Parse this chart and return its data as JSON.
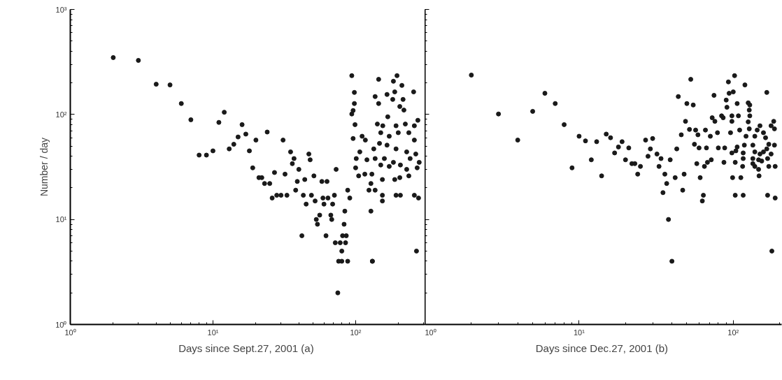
{
  "chart_data": [
    {
      "type": "scatter",
      "xlabel": "Days since Sept.27, 2001  (a)",
      "ylabel": "Number / day",
      "log": "xy",
      "grid": false,
      "marker": "circle",
      "xlim": [
        1,
        306
      ],
      "ylim": [
        1,
        1000
      ],
      "xticks": [
        {
          "value": 1,
          "label": "10⁰"
        },
        {
          "value": 10,
          "label": "10¹"
        },
        {
          "value": 100,
          "label": "10²"
        }
      ],
      "yticks": [
        {
          "value": 1,
          "label": "10⁰"
        },
        {
          "value": 10,
          "label": "10¹"
        },
        {
          "value": 100,
          "label": "10²"
        },
        {
          "value": 1000,
          "label": "10³"
        }
      ],
      "series": [
        {
          "color": "#1a1a1a",
          "x": [
            2,
            3,
            4,
            5,
            6,
            7,
            8,
            9,
            10,
            11,
            12,
            13,
            14,
            15,
            16,
            17,
            18,
            19,
            20,
            21,
            22,
            23,
            24,
            25,
            26,
            27,
            28,
            31,
            35,
            37,
            36,
            32,
            40,
            47,
            48,
            39,
            44,
            51,
            30,
            33,
            38,
            43,
            45,
            49,
            52,
            58,
            63,
            59,
            60,
            64,
            69,
            71,
            73,
            56,
            53,
            54,
            67,
            68,
            42,
            62,
            72,
            78,
            85,
            80,
            81,
            86,
            84,
            83,
            88,
            91,
            75,
            76,
            80,
            88,
            131,
            128,
            94,
            98,
            98,
            96,
            94,
            99,
            96,
            101,
            100,
            105,
            111,
            117,
            107,
            120,
            116,
            130,
            128,
            124,
            137,
            154,
            154,
            134,
            145,
            137,
            145,
            166,
            184,
            195,
            211,
            188,
            182,
            215,
            204,
            218,
            255,
            168,
            155,
            142,
            192,
            223,
            258,
            273,
            150,
            172,
            199,
            236,
            258,
            147,
            166,
            192,
            228,
            264,
            137,
            159,
            184,
            206,
            241,
            279,
            150,
            172,
            228,
            154,
            188,
            204,
            236,
            270,
            192,
            206,
            258,
            276,
            267,
            131
          ],
          "values": [
            348,
            327,
            194,
            191,
            127,
            89,
            41,
            41,
            45,
            84,
            105,
            47,
            52,
            61,
            80,
            65,
            45,
            31,
            57,
            25,
            25,
            22,
            68,
            22,
            16,
            28,
            17,
            57,
            44,
            38,
            34,
            27,
            30,
            42,
            37,
            23,
            24,
            26,
            17,
            17,
            19,
            17,
            14,
            17,
            15,
            23,
            23,
            16,
            14,
            16,
            14,
            17,
            30,
            11,
            10,
            9,
            11,
            10,
            7,
            7,
            6,
            6,
            6,
            5,
            7,
            7,
            12,
            9,
            19,
            16,
            2,
            4,
            4,
            4,
            4,
            12,
            234,
            162,
            127,
            109,
            101,
            80,
            59,
            38,
            31,
            26,
            62,
            57,
            44,
            37,
            27,
            27,
            22,
            19,
            19,
            17,
            15,
            47,
            216,
            148,
            127,
            155,
            207,
            234,
            189,
            164,
            139,
            139,
            119,
            110,
            164,
            95,
            78,
            81,
            78,
            81,
            78,
            88,
            67,
            62,
            67,
            67,
            57,
            53,
            51,
            47,
            44,
            42,
            38,
            38,
            35,
            33,
            38,
            35,
            33,
            32,
            30,
            24,
            24,
            25,
            26,
            31,
            17,
            17,
            17,
            16,
            5,
            4
          ]
        }
      ]
    },
    {
      "type": "scatter",
      "xlabel": "Days since Dec.27, 2001  (b)",
      "log": "xy",
      "grid": false,
      "marker": "circle",
      "tick_labels": "x",
      "xlim": [
        1,
        206
      ],
      "ylim": [
        1,
        1000
      ],
      "xticks": [
        {
          "value": 1,
          "label": "10⁰"
        },
        {
          "value": 10,
          "label": "10¹"
        },
        {
          "value": 100,
          "label": "10²"
        }
      ],
      "yticks": [
        {
          "value": 1,
          "label": null
        },
        {
          "value": 10,
          "label": null
        },
        {
          "value": 100,
          "label": null
        },
        {
          "value": 1000,
          "label": null
        }
      ],
      "series": [
        {
          "color": "#1a1a1a",
          "x": [
            2,
            3,
            4,
            5,
            6,
            7,
            8,
            9,
            10,
            11,
            12,
            13,
            14,
            15,
            16,
            17,
            18,
            19,
            20,
            21,
            22,
            23,
            25,
            24,
            27,
            30,
            29,
            28,
            32,
            34,
            33,
            36,
            37,
            35,
            39,
            42,
            43,
            47,
            48,
            46,
            44,
            50,
            55,
            53,
            49,
            52,
            57,
            59,
            56,
            60,
            58,
            66,
            67,
            61,
            64,
            63,
            65,
            68,
            72,
            71,
            75,
            73,
            76,
            79,
            80,
            84,
            86,
            88,
            87,
            90,
            91,
            94,
            93,
            100,
            102,
            98,
            98,
            96,
            98,
            104,
            106,
            108,
            110,
            106,
            103,
            115,
            116,
            121,
            119,
            125,
            128,
            127,
            128,
            125,
            127,
            118,
            116,
            99,
            112,
            103,
            116,
            167,
            187,
            178,
            40,
            38,
            165,
            183,
            185,
            185,
            134,
            138,
            143,
            157,
            162,
            170,
            138,
            149,
            157,
            165,
            176,
            134,
            146,
            153,
            167,
            187,
            170,
            138,
            146,
            134,
            147,
            149,
            176
          ],
          "values": [
            237,
            101,
            57,
            107,
            159,
            127,
            80,
            31,
            62,
            56,
            37,
            55,
            26,
            65,
            60,
            43,
            49,
            55,
            37,
            48,
            34,
            34,
            32,
            27,
            57,
            59,
            47,
            40,
            42,
            38,
            32,
            27,
            22,
            18,
            37,
            25,
            47,
            19,
            27,
            64,
            148,
            127,
            123,
            216,
            86,
            72,
            71,
            64,
            52,
            48,
            34,
            71,
            48,
            25,
            17,
            15,
            32,
            35,
            37,
            62,
            152,
            93,
            86,
            67,
            48,
            97,
            93,
            48,
            35,
            137,
            117,
            159,
            204,
            164,
            234,
            97,
            86,
            67,
            43,
            45,
            127,
            97,
            71,
            49,
            35,
            32,
            43,
            62,
            191,
            129,
            123,
            110,
            97,
            85,
            73,
            51,
            38,
            25,
            25,
            17,
            17,
            17,
            16,
            5,
            4,
            10,
            162,
            86,
            73,
            51,
            51,
            62,
            71,
            67,
            60,
            52,
            44,
            42,
            44,
            47,
            42,
            38,
            37,
            36,
            38,
            32,
            32,
            32,
            30,
            34,
            26,
            78,
            78
          ]
        }
      ]
    }
  ]
}
